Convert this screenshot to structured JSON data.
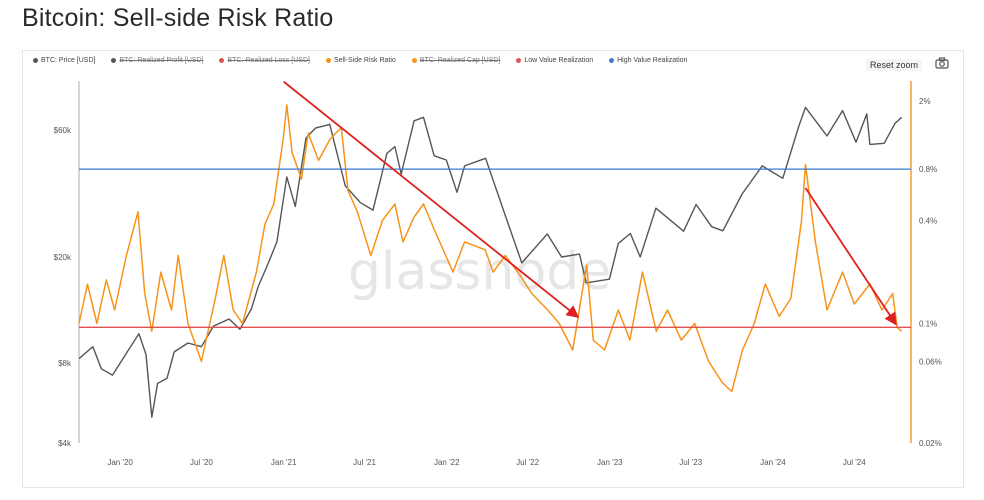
{
  "page": {
    "title": "Bitcoin: Sell-side Risk Ratio"
  },
  "toolbar": {
    "reset_zoom": "Reset zoom",
    "camera_icon": "camera-icon"
  },
  "watermark": "glassnode",
  "legend": [
    {
      "label": "BTC: Price [USD]",
      "color": "#555555",
      "hidden": false
    },
    {
      "label": "BTC: Realized Profit [USD]",
      "color": "#555555",
      "hidden": true
    },
    {
      "label": "BTC: Realized Loss [USD]",
      "color": "#e05050",
      "hidden": true
    },
    {
      "label": "Sell-Side Risk Ratio",
      "color": "#f7931a",
      "hidden": false
    },
    {
      "label": "BTC: Realized Cap [USD]",
      "color": "#f7931a",
      "hidden": true
    },
    {
      "label": "Low Value Realization",
      "color": "#e05050",
      "hidden": false
    },
    {
      "label": "High Value Realization",
      "color": "#3a7bd5",
      "hidden": false
    }
  ],
  "chart_data": {
    "type": "line",
    "x_ticks": [
      "Jan '20",
      "Jul '20",
      "Jan '21",
      "Jul '21",
      "Jan '22",
      "Jul '22",
      "Jan '23",
      "Jul '23",
      "Jan '24",
      "Jul '24"
    ],
    "x_range": [
      "2019-10",
      "2024-10"
    ],
    "y_left": {
      "ticks": [
        "$4k",
        "$8k",
        "$20k",
        "$60k"
      ],
      "scale": "log",
      "range": [
        4000,
        100000
      ]
    },
    "y_right": {
      "ticks": [
        "0.02%",
        "0.06%",
        "0.1%",
        "0.4%",
        "0.8%",
        "2%"
      ],
      "scale": "log",
      "range": [
        0.02,
        3
      ]
    },
    "series": [
      {
        "name": "BTC: Price [USD]",
        "axis": "left",
        "color": "#555555",
        "points": [
          [
            "2019-10-01",
            8300
          ],
          [
            "2019-11-01",
            9200
          ],
          [
            "2019-11-20",
            7600
          ],
          [
            "2019-12-15",
            7200
          ],
          [
            "2020-01-15",
            8700
          ],
          [
            "2020-02-12",
            10300
          ],
          [
            "2020-02-28",
            8600
          ],
          [
            "2020-03-12",
            5000
          ],
          [
            "2020-03-25",
            6700
          ],
          [
            "2020-04-15",
            7000
          ],
          [
            "2020-05-01",
            8800
          ],
          [
            "2020-06-01",
            9500
          ],
          [
            "2020-07-01",
            9200
          ],
          [
            "2020-07-28",
            11000
          ],
          [
            "2020-09-01",
            11700
          ],
          [
            "2020-09-25",
            10700
          ],
          [
            "2020-10-21",
            12800
          ],
          [
            "2020-11-05",
            15500
          ],
          [
            "2020-11-25",
            18500
          ],
          [
            "2020-12-17",
            22800
          ],
          [
            "2021-01-08",
            40000
          ],
          [
            "2021-01-27",
            31000
          ],
          [
            "2021-02-20",
            56000
          ],
          [
            "2021-03-13",
            61000
          ],
          [
            "2021-04-14",
            63000
          ],
          [
            "2021-05-19",
            37000
          ],
          [
            "2021-06-22",
            32000
          ],
          [
            "2021-07-20",
            30000
          ],
          [
            "2021-08-20",
            49000
          ],
          [
            "2021-09-07",
            52000
          ],
          [
            "2021-09-21",
            41000
          ],
          [
            "2021-10-20",
            65000
          ],
          [
            "2021-11-10",
            67000
          ],
          [
            "2021-12-04",
            48000
          ],
          [
            "2021-12-31",
            46300
          ],
          [
            "2022-01-24",
            35000
          ],
          [
            "2022-02-10",
            44000
          ],
          [
            "2022-03-29",
            47000
          ],
          [
            "2022-05-11",
            29000
          ],
          [
            "2022-06-18",
            19000
          ],
          [
            "2022-08-14",
            24400
          ],
          [
            "2022-09-15",
            20000
          ],
          [
            "2022-10-25",
            20500
          ],
          [
            "2022-11-09",
            16000
          ],
          [
            "2022-12-31",
            16500
          ],
          [
            "2023-01-20",
            22500
          ],
          [
            "2023-02-16",
            24500
          ],
          [
            "2023-03-10",
            20000
          ],
          [
            "2023-04-14",
            30500
          ],
          [
            "2023-06-15",
            25000
          ],
          [
            "2023-07-13",
            31500
          ],
          [
            "2023-08-17",
            26000
          ],
          [
            "2023-09-11",
            25100
          ],
          [
            "2023-10-24",
            34500
          ],
          [
            "2023-12-08",
            44000
          ],
          [
            "2024-01-23",
            39500
          ],
          [
            "2024-02-28",
            62000
          ],
          [
            "2024-03-14",
            73000
          ],
          [
            "2024-05-01",
            57000
          ],
          [
            "2024-06-05",
            71000
          ],
          [
            "2024-07-05",
            54000
          ],
          [
            "2024-07-29",
            69000
          ],
          [
            "2024-08-05",
            53000
          ],
          [
            "2024-09-06",
            53500
          ],
          [
            "2024-09-30",
            63500
          ],
          [
            "2024-10-15",
            67000
          ]
        ]
      },
      {
        "name": "Sell-Side Risk Ratio",
        "axis": "right",
        "color": "#f7931a",
        "points": [
          [
            "2019-10-01",
            0.1
          ],
          [
            "2019-10-20",
            0.17
          ],
          [
            "2019-11-10",
            0.1
          ],
          [
            "2019-12-01",
            0.18
          ],
          [
            "2019-12-20",
            0.12
          ],
          [
            "2020-01-15",
            0.25
          ],
          [
            "2020-02-10",
            0.45
          ],
          [
            "2020-02-25",
            0.15
          ],
          [
            "2020-03-12",
            0.09
          ],
          [
            "2020-04-01",
            0.2
          ],
          [
            "2020-04-25",
            0.12
          ],
          [
            "2020-05-10",
            0.25
          ],
          [
            "2020-06-01",
            0.1
          ],
          [
            "2020-07-01",
            0.06
          ],
          [
            "2020-08-01",
            0.14
          ],
          [
            "2020-08-20",
            0.25
          ],
          [
            "2020-09-10",
            0.12
          ],
          [
            "2020-10-01",
            0.1
          ],
          [
            "2020-11-01",
            0.2
          ],
          [
            "2020-11-20",
            0.38
          ],
          [
            "2020-12-10",
            0.5
          ],
          [
            "2020-12-31",
            1.2
          ],
          [
            "2021-01-08",
            1.9
          ],
          [
            "2021-01-20",
            1.0
          ],
          [
            "2021-02-10",
            0.7
          ],
          [
            "2021-02-25",
            1.3
          ],
          [
            "2021-03-20",
            0.9
          ],
          [
            "2021-04-15",
            1.2
          ],
          [
            "2021-05-10",
            1.4
          ],
          [
            "2021-05-25",
            0.6
          ],
          [
            "2021-06-15",
            0.45
          ],
          [
            "2021-07-15",
            0.25
          ],
          [
            "2021-08-10",
            0.4
          ],
          [
            "2021-09-07",
            0.5
          ],
          [
            "2021-09-25",
            0.3
          ],
          [
            "2021-10-20",
            0.42
          ],
          [
            "2021-11-10",
            0.5
          ],
          [
            "2021-12-05",
            0.35
          ],
          [
            "2022-01-15",
            0.2
          ],
          [
            "2022-02-10",
            0.3
          ],
          [
            "2022-03-28",
            0.27
          ],
          [
            "2022-04-15",
            0.2
          ],
          [
            "2022-05-12",
            0.25
          ],
          [
            "2022-06-15",
            0.19
          ],
          [
            "2022-07-10",
            0.15
          ],
          [
            "2022-08-15",
            0.12
          ],
          [
            "2022-09-10",
            0.1
          ],
          [
            "2022-10-10",
            0.07
          ],
          [
            "2022-11-10",
            0.22
          ],
          [
            "2022-11-25",
            0.08
          ],
          [
            "2022-12-20",
            0.07
          ],
          [
            "2023-01-20",
            0.12
          ],
          [
            "2023-02-15",
            0.08
          ],
          [
            "2023-03-15",
            0.2
          ],
          [
            "2023-04-15",
            0.09
          ],
          [
            "2023-05-10",
            0.12
          ],
          [
            "2023-06-10",
            0.08
          ],
          [
            "2023-07-10",
            0.1
          ],
          [
            "2023-08-10",
            0.06
          ],
          [
            "2023-09-10",
            0.045
          ],
          [
            "2023-10-01",
            0.04
          ],
          [
            "2023-10-25",
            0.07
          ],
          [
            "2023-11-20",
            0.1
          ],
          [
            "2023-12-15",
            0.17
          ],
          [
            "2024-01-15",
            0.11
          ],
          [
            "2024-02-10",
            0.14
          ],
          [
            "2024-03-05",
            0.4
          ],
          [
            "2024-03-14",
            0.85
          ],
          [
            "2024-04-05",
            0.3
          ],
          [
            "2024-05-01",
            0.12
          ],
          [
            "2024-06-05",
            0.2
          ],
          [
            "2024-07-01",
            0.13
          ],
          [
            "2024-08-05",
            0.17
          ],
          [
            "2024-09-01",
            0.12
          ],
          [
            "2024-09-25",
            0.15
          ],
          [
            "2024-10-05",
            0.095
          ],
          [
            "2024-10-15",
            0.09
          ]
        ]
      },
      {
        "name": "High Value Realization",
        "axis": "right",
        "color": "#3a7bd5",
        "constant": 0.8
      },
      {
        "name": "Low Value Realization",
        "axis": "right",
        "color": "#e05050",
        "constant": 0.095
      }
    ],
    "annotations": [
      {
        "type": "arrow",
        "color": "#e02020",
        "from": {
          "date": "2021-01-01",
          "value": 2.6
        },
        "to": {
          "date": "2022-10-20",
          "value": 0.11
        }
      },
      {
        "type": "arrow",
        "color": "#e02020",
        "from": {
          "date": "2024-03-14",
          "value": 0.62
        },
        "to": {
          "date": "2024-10-01",
          "value": 0.1
        }
      }
    ]
  }
}
